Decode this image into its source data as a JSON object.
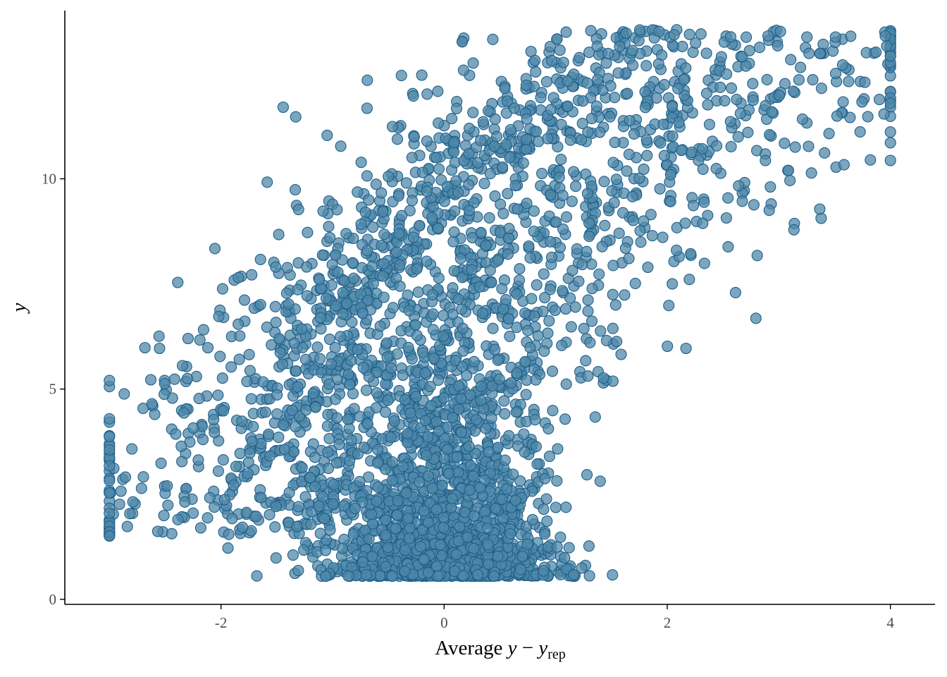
{
  "chart_data": {
    "type": "scatter",
    "title": "",
    "xlabel": {
      "prefix": "Average ",
      "var": "y",
      "minus": " − ",
      "var2": "y",
      "sub": "rep"
    },
    "ylabel": "y",
    "xlim": [
      -3.4,
      4.4
    ],
    "ylim": [
      -0.12,
      14.0
    ],
    "x_ticks": [
      -2,
      0,
      2,
      4
    ],
    "y_ticks": [
      0,
      5,
      10
    ],
    "x_tick_labels": [
      "-2",
      "0",
      "2",
      "4"
    ],
    "y_tick_labels": [
      "0",
      "5",
      "10"
    ],
    "grid": false,
    "legend": "none",
    "point_fill": "#4f88a8",
    "point_stroke": "#1f5f8b",
    "point_opacity": 0.75,
    "n_points": 3500,
    "x": [],
    "y": []
  }
}
